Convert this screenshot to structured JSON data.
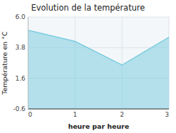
{
  "chart_data": {
    "type": "area",
    "title": "Evolution de la température",
    "x_label": "heure par heure",
    "y_label": "Température en °C",
    "x": [
      0,
      1,
      2,
      3
    ],
    "values": [
      5.05,
      4.25,
      2.55,
      4.55
    ],
    "xlim": [
      0,
      3
    ],
    "ylim": [
      -0.6,
      6.0
    ],
    "xticks": [
      0,
      1,
      2,
      3
    ],
    "yticks": [
      -0.6,
      1.6,
      3.8,
      {
        "value": 6.0,
        "label": "6.0"
      }
    ],
    "grid": true,
    "color": "#7dcde0"
  }
}
